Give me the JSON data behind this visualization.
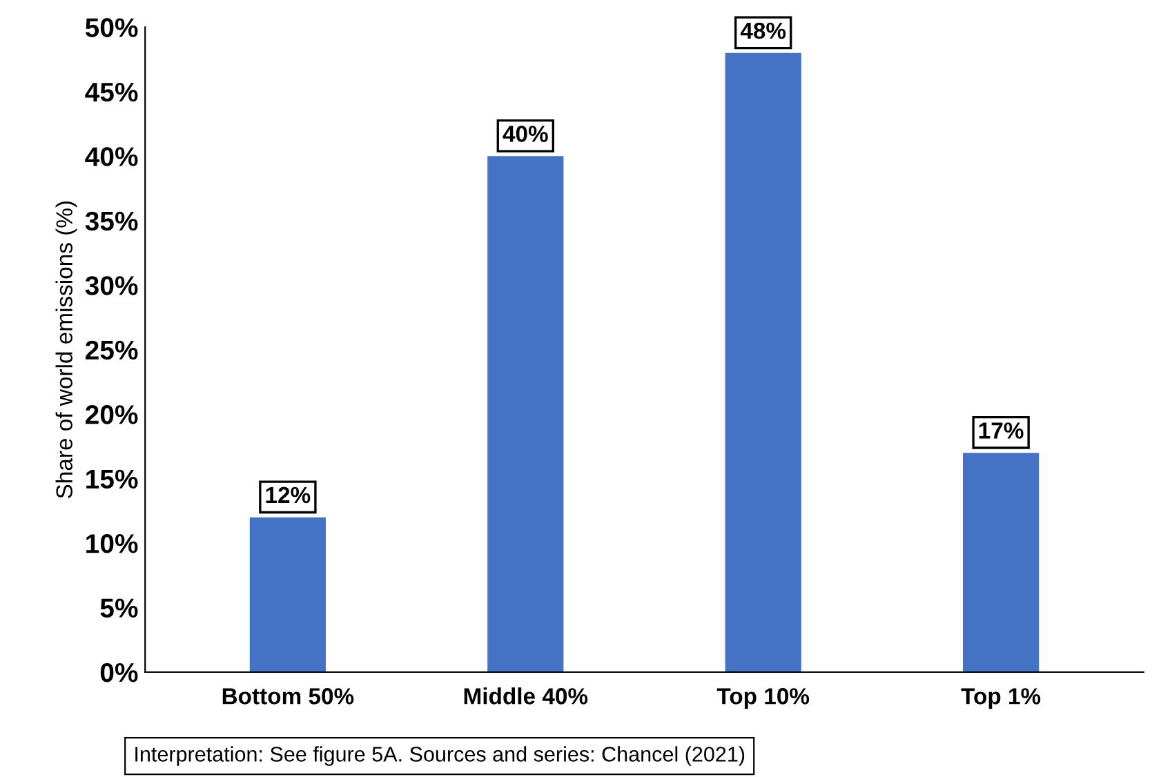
{
  "chart_data": {
    "type": "bar",
    "ylabel": "Share of world emissions (%)",
    "categories": [
      "Bottom 50%",
      "Middle 40%",
      "Top 10%",
      "Top 1%"
    ],
    "values": [
      12,
      40,
      48,
      17
    ],
    "value_labels": [
      "12%",
      "40%",
      "48%",
      "17%"
    ],
    "color": "#4472c4",
    "ylim": [
      0,
      50
    ],
    "yticks": [
      {
        "value": 0,
        "label": "0%"
      },
      {
        "value": 5,
        "label": "5%"
      },
      {
        "value": 10,
        "label": "10%"
      },
      {
        "value": 15,
        "label": "15%"
      },
      {
        "value": 20,
        "label": "20%"
      },
      {
        "value": 25,
        "label": "25%"
      },
      {
        "value": 30,
        "label": "30%"
      },
      {
        "value": 35,
        "label": "35%"
      },
      {
        "value": 40,
        "label": "40%"
      },
      {
        "value": 45,
        "label": "45%"
      },
      {
        "value": 50,
        "label": "50%"
      }
    ],
    "grid": false,
    "annotations": [
      "Interpretation: See figure 5A. Sources and series: Chancel (2021)"
    ]
  }
}
